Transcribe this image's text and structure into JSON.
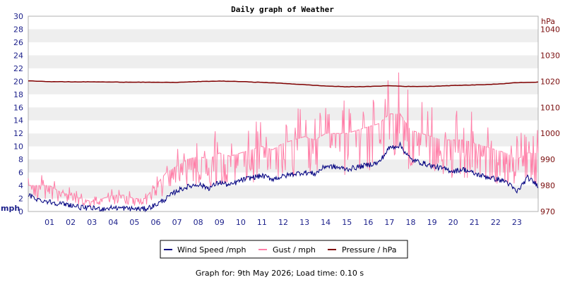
{
  "chart_data": {
    "type": "line",
    "title": "Daily graph of Weather",
    "left_axis": {
      "unit": "mph",
      "ylim": [
        0,
        30
      ],
      "ticks": [
        "0",
        "2",
        "4",
        "6",
        "8",
        "10",
        "12",
        "14",
        "16",
        "18",
        "20",
        "22",
        "24",
        "26",
        "28",
        "30"
      ]
    },
    "right_axis": {
      "unit": "hPa",
      "ylim": [
        970,
        1045
      ],
      "ticks": [
        "970",
        "980",
        "990",
        "1000",
        "1010",
        "1020",
        "1030",
        "1040"
      ]
    },
    "x_ticks": [
      "01",
      "02",
      "03",
      "04",
      "05",
      "06",
      "07",
      "08",
      "09",
      "10",
      "11",
      "12",
      "13",
      "14",
      "15",
      "16",
      "17",
      "18",
      "19",
      "20",
      "21",
      "22",
      "23"
    ],
    "xlim": [
      0,
      24
    ],
    "grid": "horizontal bands",
    "legend_position": "bottom",
    "series": [
      {
        "name": "Wind Speed /mph",
        "axis": "left",
        "color": "#000080",
        "x": [
          0,
          0.5,
          1,
          1.5,
          2,
          2.5,
          3,
          3.5,
          4,
          4.5,
          5,
          5.5,
          6,
          6.5,
          7,
          7.5,
          8,
          8.5,
          9,
          9.5,
          10,
          10.5,
          11,
          11.5,
          12,
          12.5,
          13,
          13.5,
          14,
          14.5,
          15,
          15.5,
          16,
          16.5,
          17,
          17.5,
          18,
          18.5,
          19,
          19.5,
          20,
          20.5,
          21,
          21.5,
          22,
          22.5,
          23,
          23.5,
          24
        ],
        "values": [
          2.5,
          1.8,
          1.5,
          1.2,
          1.0,
          0.6,
          0.5,
          0.4,
          0.6,
          0.5,
          0.4,
          0.4,
          1.0,
          2.0,
          3.2,
          3.8,
          4.2,
          3.6,
          4.5,
          4.0,
          4.8,
          5.2,
          5.5,
          5.0,
          5.4,
          5.8,
          6.0,
          5.8,
          7.0,
          6.8,
          6.5,
          6.8,
          7.2,
          7.5,
          9.8,
          10.2,
          8.0,
          7.5,
          7.0,
          6.6,
          6.2,
          6.5,
          5.8,
          5.4,
          5.0,
          4.6,
          3.0,
          5.2,
          4.0
        ]
      },
      {
        "name": "Gust / mph",
        "axis": "left",
        "color": "#ff7fa8",
        "x": [
          0,
          0.5,
          1,
          1.5,
          2,
          2.5,
          3,
          3.5,
          4,
          4.5,
          5,
          5.5,
          6,
          6.5,
          7,
          7.5,
          8,
          8.5,
          9,
          9.5,
          10,
          10.5,
          11,
          11.5,
          12,
          12.5,
          13,
          13.5,
          14,
          14.5,
          15,
          15.5,
          16,
          16.5,
          17,
          17.5,
          18,
          18.5,
          19,
          19.5,
          20,
          20.5,
          21,
          21.5,
          22,
          22.5,
          23,
          23.5,
          24
        ],
        "values": [
          4,
          4,
          4,
          3,
          2.5,
          2,
          1.5,
          2,
          2.5,
          2.5,
          2,
          2,
          4,
          6,
          7,
          8,
          8.5,
          8,
          9,
          8.5,
          9,
          9.5,
          10,
          9.5,
          10.5,
          11,
          11.5,
          11,
          12,
          12,
          12,
          12.5,
          13,
          13.5,
          15,
          15,
          12.5,
          12,
          11.5,
          11,
          11,
          11,
          10.5,
          10,
          9.5,
          9,
          8,
          9,
          9
        ]
      },
      {
        "name": "Pressure / hPa",
        "axis": "right",
        "color": "#800000",
        "x": [
          0,
          1,
          2,
          3,
          4,
          5,
          6,
          7,
          8,
          9,
          10,
          11,
          12,
          13,
          14,
          15,
          16,
          17,
          18,
          19,
          20,
          21,
          22,
          23,
          24
        ],
        "values": [
          1020.2,
          1019.9,
          1019.8,
          1019.8,
          1019.7,
          1019.7,
          1019.6,
          1019.6,
          1019.9,
          1020.1,
          1019.9,
          1019.6,
          1019.2,
          1018.7,
          1018.2,
          1017.9,
          1018.0,
          1018.3,
          1018.0,
          1018.1,
          1018.4,
          1018.6,
          1018.9,
          1019.5,
          1019.7
        ]
      }
    ]
  },
  "footer": "Graph for: 9th May 2026; Load time: 0.10 s"
}
